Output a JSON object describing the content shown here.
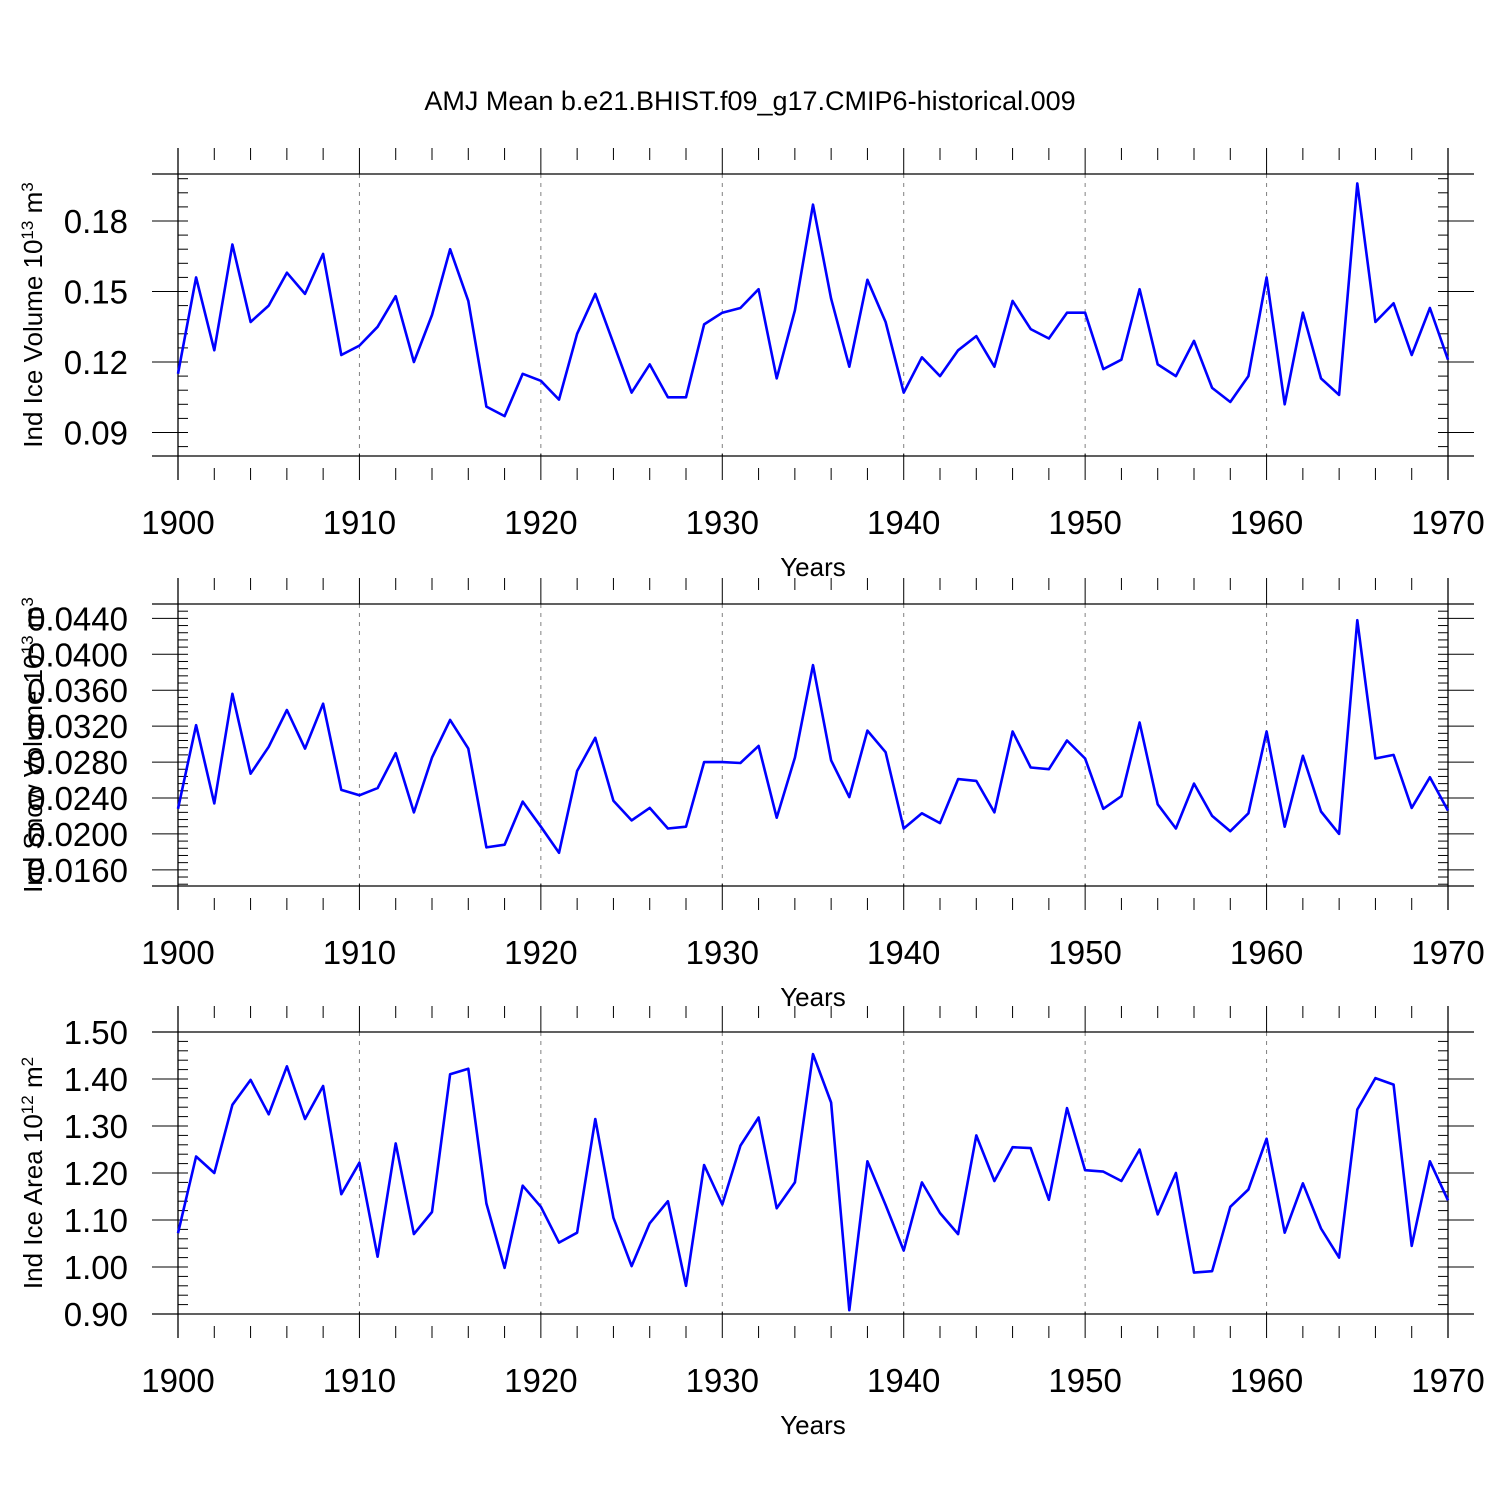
{
  "title": "AMJ Mean b.e21.BHIST.f09_g17.CMIP6-historical.009",
  "colors": {
    "series": "#0000ff",
    "axis": "#000000",
    "grid": "#808080"
  },
  "chart_data": [
    {
      "type": "line",
      "xlabel": "Years",
      "ylabel": {
        "base": "Ind Ice Volume 10",
        "sup": "13",
        "unit": " m",
        "unit_sup": "3"
      },
      "xlim": [
        1900,
        1970
      ],
      "ylim": [
        0.08,
        0.2
      ],
      "xticks": [
        "1900",
        "1910",
        "1920",
        "1930",
        "1940",
        "1950",
        "1960",
        "1970"
      ],
      "yticks": [
        "0.09",
        "0.12",
        "0.15",
        "0.18"
      ],
      "ytick_values": [
        0.09,
        0.12,
        0.15,
        0.18
      ],
      "grid": "x-dashed",
      "x_start": 1900,
      "values": [
        0.115,
        0.156,
        0.125,
        0.17,
        0.137,
        0.144,
        0.158,
        0.149,
        0.166,
        0.123,
        0.127,
        0.135,
        0.148,
        0.12,
        0.14,
        0.168,
        0.146,
        0.101,
        0.097,
        0.115,
        0.112,
        0.104,
        0.132,
        0.149,
        0.128,
        0.107,
        0.119,
        0.105,
        0.105,
        0.136,
        0.141,
        0.143,
        0.151,
        0.113,
        0.142,
        0.187,
        0.147,
        0.118,
        0.155,
        0.137,
        0.107,
        0.122,
        0.114,
        0.125,
        0.131,
        0.118,
        0.146,
        0.134,
        0.13,
        0.141,
        0.141,
        0.117,
        0.121,
        0.151,
        0.119,
        0.114,
        0.129,
        0.109,
        0.103,
        0.114,
        0.156,
        0.102,
        0.141,
        0.113,
        0.106,
        0.196,
        0.137,
        0.145,
        0.123,
        0.143,
        0.121
      ]
    },
    {
      "type": "line",
      "xlabel": "Years",
      "ylabel": {
        "base": "Ind Snow Volume 10",
        "sup": "13",
        "unit": " m",
        "unit_sup": "3"
      },
      "xlim": [
        1900,
        1970
      ],
      "ylim": [
        0.0142,
        0.0456
      ],
      "xticks": [
        "1900",
        "1910",
        "1920",
        "1930",
        "1940",
        "1950",
        "1960",
        "1970"
      ],
      "yticks": [
        "0.0160",
        "0.0200",
        "0.0240",
        "0.0280",
        "0.0320",
        "0.0360",
        "0.0400",
        "0.0440"
      ],
      "ytick_values": [
        0.016,
        0.02,
        0.024,
        0.028,
        0.032,
        0.036,
        0.04,
        0.044
      ],
      "grid": "x-dashed",
      "x_start": 1900,
      "values": [
        0.0228,
        0.0321,
        0.0234,
        0.0356,
        0.0267,
        0.0297,
        0.0338,
        0.0295,
        0.0345,
        0.0249,
        0.0243,
        0.0251,
        0.029,
        0.0224,
        0.0285,
        0.0327,
        0.0295,
        0.0185,
        0.0188,
        0.0236,
        0.0208,
        0.0179,
        0.027,
        0.0307,
        0.0237,
        0.0215,
        0.0229,
        0.0206,
        0.0208,
        0.028,
        0.028,
        0.0279,
        0.0298,
        0.0218,
        0.0285,
        0.0388,
        0.0282,
        0.0241,
        0.0315,
        0.0291,
        0.0206,
        0.0223,
        0.0212,
        0.0261,
        0.0259,
        0.0224,
        0.0314,
        0.0274,
        0.0272,
        0.0304,
        0.0284,
        0.0228,
        0.0242,
        0.0324,
        0.0233,
        0.0206,
        0.0256,
        0.022,
        0.0203,
        0.0223,
        0.0314,
        0.0208,
        0.0287,
        0.0225,
        0.02,
        0.0438,
        0.0284,
        0.0288,
        0.0229,
        0.0263,
        0.0226
      ]
    },
    {
      "type": "line",
      "xlabel": "Years",
      "ylabel": {
        "base": "Ind Ice Area 10",
        "sup": "12",
        "unit": " m",
        "unit_sup": "2"
      },
      "xlim": [
        1900,
        1970
      ],
      "ylim": [
        0.9,
        1.5
      ],
      "xticks": [
        "1900",
        "1910",
        "1920",
        "1930",
        "1940",
        "1950",
        "1960",
        "1970"
      ],
      "yticks": [
        "0.90",
        "1.00",
        "1.10",
        "1.20",
        "1.30",
        "1.40",
        "1.50"
      ],
      "ytick_values": [
        0.9,
        1.0,
        1.1,
        1.2,
        1.3,
        1.4,
        1.5
      ],
      "grid": "x-dashed",
      "x_start": 1900,
      "values": [
        1.072,
        1.235,
        1.2,
        1.345,
        1.398,
        1.325,
        1.427,
        1.315,
        1.385,
        1.155,
        1.222,
        1.022,
        1.263,
        1.07,
        1.117,
        1.41,
        1.422,
        1.135,
        0.998,
        1.173,
        1.128,
        1.052,
        1.073,
        1.315,
        1.105,
        1.002,
        1.093,
        1.14,
        0.96,
        1.217,
        1.133,
        1.258,
        1.318,
        1.125,
        1.18,
        1.453,
        1.35,
        0.908,
        1.225,
        1.132,
        1.035,
        1.18,
        1.115,
        1.07,
        1.28,
        1.183,
        1.255,
        1.253,
        1.143,
        1.338,
        1.206,
        1.203,
        1.183,
        1.25,
        1.112,
        1.2,
        0.988,
        0.991,
        1.128,
        1.165,
        1.273,
        1.073,
        1.178,
        1.082,
        1.02,
        1.335,
        1.402,
        1.388,
        1.045,
        1.225,
        1.142
      ]
    }
  ]
}
